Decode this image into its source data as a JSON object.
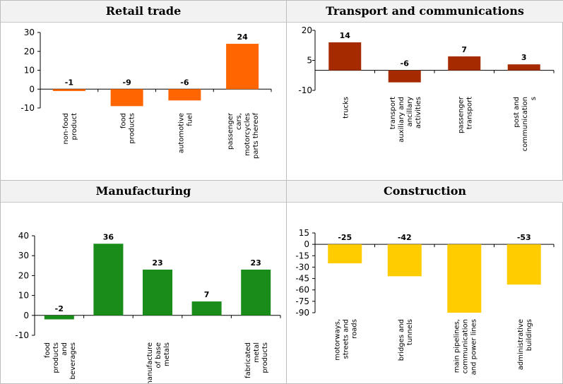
{
  "chart_data": [
    {
      "type": "bar",
      "title": "Retail trade",
      "color": "#ff6600",
      "ylim": [
        -10,
        30
      ],
      "yticks": [
        30,
        20,
        10,
        0,
        -10
      ],
      "categories": [
        [
          "non-food",
          "product"
        ],
        [
          "food",
          "products"
        ],
        [
          "automotive",
          "fuel"
        ],
        [
          "passenger",
          "cars,",
          "motorcycles",
          "parts thereof"
        ]
      ],
      "values": [
        -1,
        -9,
        -6,
        24
      ],
      "value_labels": [
        "-1",
        "-9",
        "-6",
        "24"
      ]
    },
    {
      "type": "bar",
      "title": "Transport and communications",
      "color": "#a52a00",
      "ylim": [
        -10,
        20
      ],
      "yticks": [
        20,
        5,
        -10
      ],
      "categories": [
        [
          "trucks"
        ],
        [
          "transport",
          "auxiliary and",
          "ancillary",
          "activities"
        ],
        [
          "passenger",
          "transport"
        ],
        [
          "post and",
          "communication",
          "s"
        ]
      ],
      "values": [
        14,
        -6,
        7,
        3
      ],
      "value_labels": [
        "14",
        "-6",
        "7",
        "3"
      ]
    },
    {
      "type": "bar",
      "title": "Manufacturing",
      "color": "#1a8c1a",
      "ylim": [
        -10,
        40
      ],
      "yticks": [
        40,
        30,
        20,
        10,
        0,
        -10
      ],
      "categories": [
        [
          "food",
          "products",
          "and",
          "beverages"
        ],
        [],
        [
          "manufacture",
          "of base",
          "metals"
        ],
        [],
        [
          "fabricated",
          "metal",
          "products"
        ]
      ],
      "values": [
        -2,
        36,
        23,
        7,
        23
      ],
      "value_labels": [
        "-2",
        "36",
        "23",
        "7",
        "23"
      ]
    },
    {
      "type": "bar",
      "title": "Construction",
      "color": "#ffcc00",
      "ylim": [
        -90,
        15
      ],
      "yticks": [
        15,
        0,
        -15,
        -30,
        -45,
        -60,
        -75,
        -90
      ],
      "categories": [
        [
          "motorways,",
          "streets and",
          "roads"
        ],
        [
          "bridges and",
          "tunnels"
        ],
        [
          "main pipelines,",
          "communication",
          "and power lines"
        ],
        [
          "administrative",
          "buildings"
        ]
      ],
      "values": [
        -25,
        -42,
        -90,
        -53
      ],
      "value_labels": [
        "-25",
        "-42",
        "",
        "-53"
      ]
    }
  ]
}
